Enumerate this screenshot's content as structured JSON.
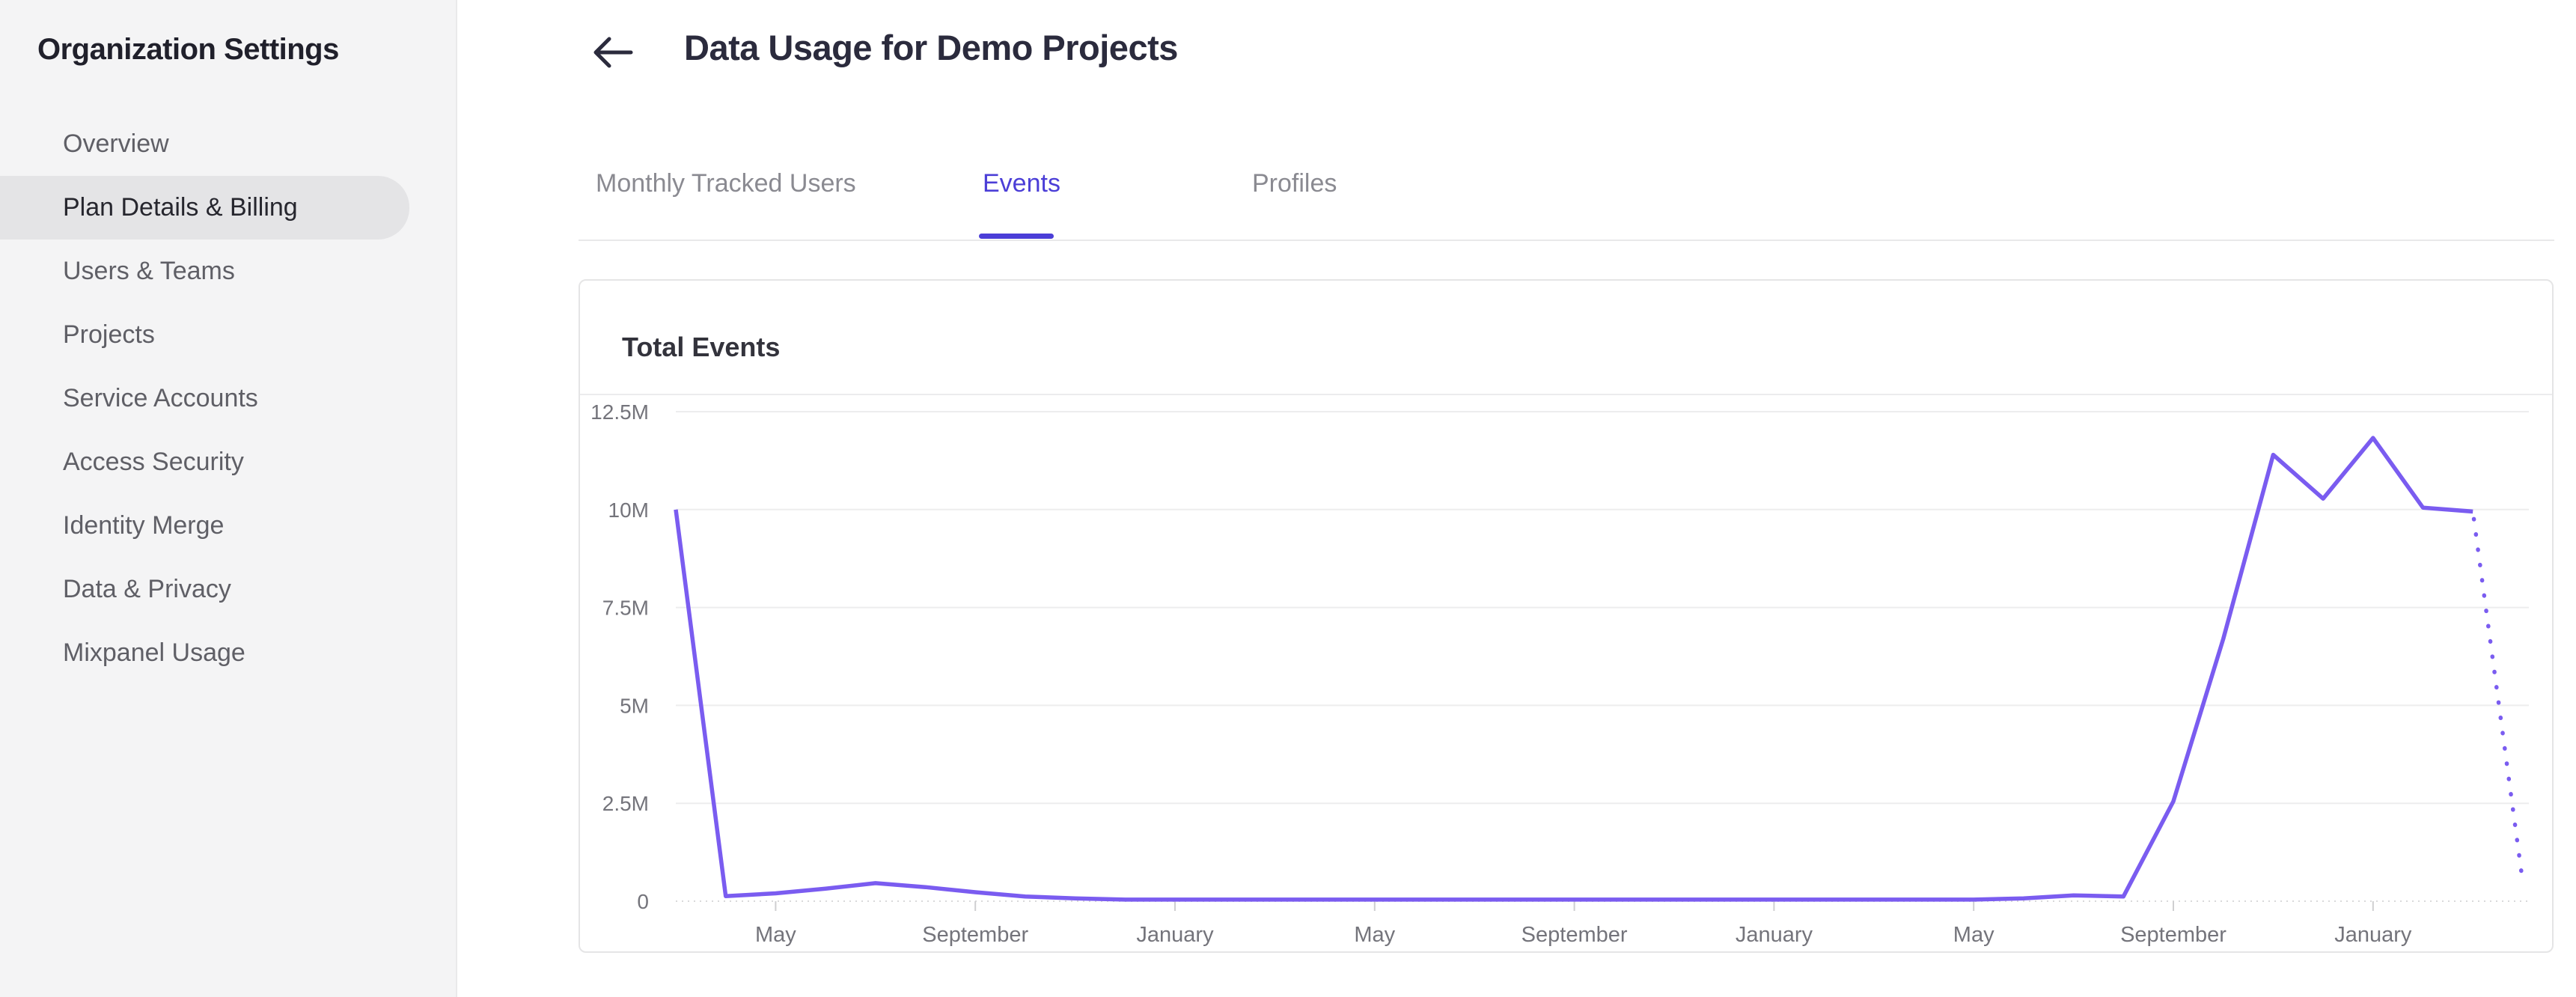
{
  "sidebar": {
    "title": "Organization Settings",
    "items": [
      {
        "label": "Overview",
        "active": false
      },
      {
        "label": "Plan Details & Billing",
        "active": true
      },
      {
        "label": "Users & Teams",
        "active": false
      },
      {
        "label": "Projects",
        "active": false
      },
      {
        "label": "Service Accounts",
        "active": false
      },
      {
        "label": "Access Security",
        "active": false
      },
      {
        "label": "Identity Merge",
        "active": false
      },
      {
        "label": "Data & Privacy",
        "active": false
      },
      {
        "label": "Mixpanel Usage",
        "active": false
      }
    ]
  },
  "header": {
    "back_icon": "left-arrow",
    "title": "Data Usage for Demo Projects"
  },
  "tabs": [
    {
      "label": "Monthly Tracked Users",
      "active": false
    },
    {
      "label": "Events",
      "active": true
    },
    {
      "label": "Profiles",
      "active": false
    }
  ],
  "card": {
    "title": "Total Events"
  },
  "colors": {
    "accent": "#4b3ed7",
    "line": "#7a5cf0",
    "sidebar_bg": "#f4f4f5",
    "active_pill": "#e4e4e6",
    "gridline": "#ededee",
    "axis_text": "#74747b"
  },
  "chart_data": {
    "type": "line",
    "title": "Total Events",
    "xlabel": "",
    "ylabel": "",
    "ylim_millions": [
      0,
      12.5
    ],
    "y_tick_labels": [
      "12.5M",
      "10M",
      "7.5M",
      "5M",
      "2.5M",
      "0"
    ],
    "y_tick_values_millions": [
      12.5,
      10,
      7.5,
      5,
      2.5,
      0
    ],
    "x_tick_labels": [
      "May",
      "September",
      "January",
      "May",
      "September",
      "January",
      "May",
      "September",
      "January"
    ],
    "x_tick_point_indices": [
      2,
      6,
      10,
      14,
      18,
      22,
      26,
      30,
      34
    ],
    "grid": true,
    "legend": false,
    "values_millions": [
      10,
      0.13,
      0.2,
      0.32,
      0.46,
      0.36,
      0.23,
      0.12,
      0.07,
      0.04,
      0.04,
      0.04,
      0.04,
      0.04,
      0.04,
      0.04,
      0.04,
      0.04,
      0.04,
      0.04,
      0.04,
      0.04,
      0.04,
      0.04,
      0.04,
      0.04,
      0.04,
      0.07,
      0.15,
      0.12,
      2.55,
      6.7,
      11.4,
      10.28,
      11.83,
      10.05,
      9.95,
      0.48
    ],
    "solid_last_index": 36,
    "projected_note": "final segment rendered as dotted projection"
  }
}
